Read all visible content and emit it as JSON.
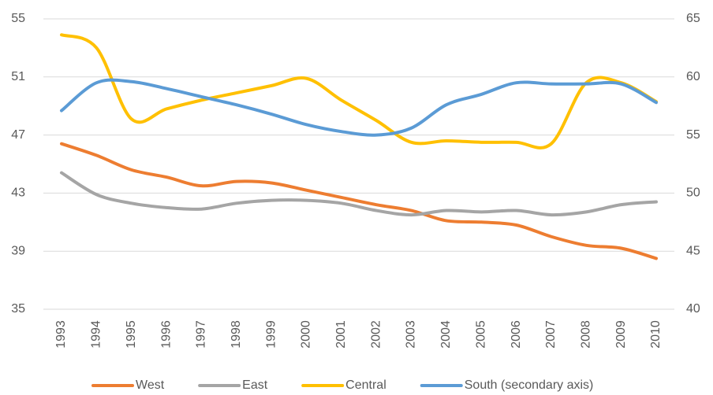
{
  "chart_data": {
    "type": "line",
    "categories": [
      "1993",
      "1994",
      "1995",
      "1996",
      "1997",
      "1998",
      "1999",
      "2000",
      "2001",
      "2002",
      "2003",
      "2004",
      "2005",
      "2006",
      "2007",
      "2008",
      "2009",
      "2010"
    ],
    "series": [
      {
        "name": "West",
        "color": "#ed7d31",
        "values": [
          46.4,
          45.6,
          44.6,
          44.1,
          43.5,
          43.8,
          43.7,
          43.2,
          42.7,
          42.2,
          41.8,
          41.1,
          41.0,
          40.8,
          40.0,
          39.4,
          39.2,
          38.5
        ]
      },
      {
        "name": "East",
        "color": "#a5a5a5",
        "values": [
          44.4,
          42.9,
          42.3,
          42.0,
          41.9,
          42.3,
          42.5,
          42.5,
          42.3,
          41.8,
          41.5,
          41.8,
          41.7,
          41.8,
          41.5,
          41.7,
          42.2,
          42.4
        ]
      },
      {
        "name": "Central",
        "color": "#ffc000",
        "values": [
          53.9,
          53.0,
          48.1,
          48.8,
          49.4,
          49.9,
          50.4,
          50.9,
          49.4,
          48.0,
          46.5,
          46.6,
          46.5,
          46.5,
          46.4,
          50.6,
          50.6,
          49.3
        ]
      },
      {
        "name": "South (secondary axis)",
        "color": "#5b9bd5",
        "axis": "y2",
        "values": [
          57.1,
          59.5,
          59.6,
          59.0,
          58.3,
          57.6,
          56.8,
          55.9,
          55.3,
          55.0,
          55.6,
          57.6,
          58.5,
          59.5,
          59.4,
          59.4,
          59.4,
          57.8
        ]
      }
    ],
    "ylim": [
      35,
      55
    ],
    "yticks": [
      35,
      39,
      43,
      47,
      51,
      55
    ],
    "y2lim": [
      40,
      65
    ],
    "y2ticks": [
      40,
      45,
      50,
      55,
      60,
      65
    ],
    "grid": true,
    "legend": "bottom"
  }
}
